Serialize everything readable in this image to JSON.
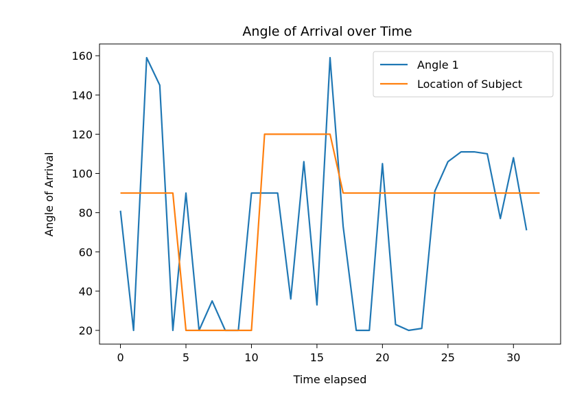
{
  "chart_data": {
    "type": "line",
    "title": "Angle of Arrival over Time",
    "xlabel": "Time elapsed",
    "ylabel": "Angle of Arrival",
    "xlim": [
      -1.6,
      33.6
    ],
    "ylim": [
      13.0,
      166.0
    ],
    "xticks": [
      0,
      5,
      10,
      15,
      20,
      25,
      30
    ],
    "yticks": [
      20,
      40,
      60,
      80,
      100,
      120,
      140,
      160
    ],
    "grid": false,
    "legend_position": "top-right",
    "series": [
      {
        "name": "Angle 1",
        "color": "#1f77b4",
        "x": [
          0,
          1,
          2,
          3,
          4,
          5,
          6,
          7,
          8,
          9,
          10,
          11,
          12,
          13,
          14,
          15,
          16,
          17,
          18,
          19,
          20,
          21,
          22,
          23,
          24,
          25,
          26,
          27,
          28,
          29,
          30,
          31
        ],
        "y": [
          81,
          20,
          159,
          145,
          20,
          90,
          20,
          35,
          20,
          20,
          90,
          90,
          90,
          36,
          106,
          33,
          159,
          73,
          20,
          20,
          105,
          23,
          20,
          21,
          91,
          106,
          111,
          111,
          110,
          77,
          108,
          71
        ]
      },
      {
        "name": "Location of Subject",
        "color": "#ff7f0e",
        "x": [
          0,
          1,
          2,
          3,
          4,
          5,
          6,
          7,
          8,
          9,
          10,
          11,
          12,
          13,
          14,
          15,
          16,
          17,
          18,
          19,
          20,
          21,
          22,
          23,
          24,
          25,
          26,
          27,
          28,
          29,
          30,
          31,
          32
        ],
        "y": [
          90,
          90,
          90,
          90,
          90,
          20,
          20,
          20,
          20,
          20,
          20,
          120,
          120,
          120,
          120,
          120,
          120,
          90,
          90,
          90,
          90,
          90,
          90,
          90,
          90,
          90,
          90,
          90,
          90,
          90,
          90,
          90,
          90
        ]
      }
    ]
  }
}
